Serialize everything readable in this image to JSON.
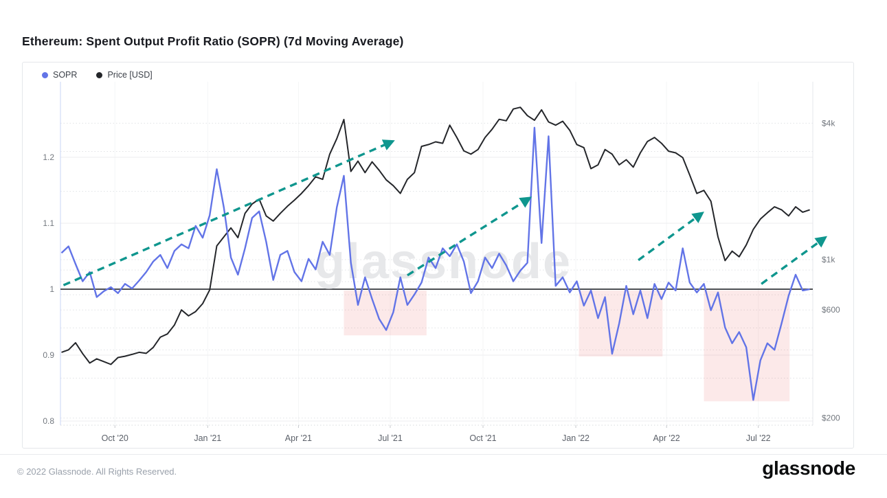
{
  "header": {
    "title": "Ethereum: Spent Output Profit Ratio (SOPR) (7d Moving Average)"
  },
  "legend": [
    {
      "label": "SOPR",
      "color": "#6274e7"
    },
    {
      "label": "Price [USD]",
      "color": "#24262a"
    }
  ],
  "watermark": "glassnode",
  "footer": {
    "copyright": "© 2022 Glassnode. All Rights Reserved.",
    "logo": "glassnode"
  },
  "chart_data": {
    "type": "line",
    "title": "Ethereum: Spent Output Profit Ratio (SOPR) (7d Moving Average)",
    "grid": true,
    "legend_position": "top-left",
    "x_domain": [
      "2020-08-08",
      "2022-08-24"
    ],
    "x_start": "2020-08-09",
    "x_step_days": 7,
    "x_ticks": [
      {
        "date": "2020-10-01",
        "label": "Oct '20"
      },
      {
        "date": "2021-01-01",
        "label": "Jan '21"
      },
      {
        "date": "2021-04-01",
        "label": "Apr '21"
      },
      {
        "date": "2021-07-01",
        "label": "Jul '21"
      },
      {
        "date": "2021-10-01",
        "label": "Oct '21"
      },
      {
        "date": "2022-01-01",
        "label": "Jan '22"
      },
      {
        "date": "2022-04-01",
        "label": "Apr '22"
      },
      {
        "date": "2022-07-01",
        "label": "Jul '22"
      }
    ],
    "left_axis": {
      "name": "SOPR",
      "scale": "linear",
      "ylim": [
        0.79,
        1.31
      ],
      "baseline": 1,
      "ticks": [
        {
          "value": 0.8,
          "label": "0.8"
        },
        {
          "value": 0.9,
          "label": "0.9"
        },
        {
          "value": 1,
          "label": "1"
        },
        {
          "value": 1.1,
          "label": "1.1"
        },
        {
          "value": 1.2,
          "label": "1.2"
        }
      ]
    },
    "right_axis": {
      "name": "Price [USD]",
      "scale": "log",
      "ylim": [
        190,
        6000
      ],
      "ticks": [
        {
          "value": 200,
          "label": "$200"
        },
        {
          "value": 600,
          "label": "$600"
        },
        {
          "value": 1000,
          "label": "$1k"
        },
        {
          "value": 4000,
          "label": "$4k"
        }
      ],
      "minor_gridlines": [
        300,
        400,
        500,
        700,
        800,
        900,
        2000,
        3000
      ]
    },
    "series": [
      {
        "name": "SOPR",
        "axis": "left",
        "color": "#6274e7",
        "values": [
          1.055,
          1.065,
          1.038,
          1.012,
          1.026,
          0.988,
          0.997,
          1.003,
          0.994,
          1.008,
          1.001,
          1.013,
          1.026,
          1.042,
          1.052,
          1.032,
          1.058,
          1.068,
          1.062,
          1.096,
          1.078,
          1.112,
          1.182,
          1.124,
          1.048,
          1.022,
          1.062,
          1.108,
          1.118,
          1.072,
          1.014,
          1.052,
          1.058,
          1.026,
          1.012,
          1.046,
          1.03,
          1.072,
          1.052,
          1.124,
          1.172,
          1.04,
          0.976,
          1.018,
          0.985,
          0.955,
          0.938,
          0.965,
          1.018,
          0.976,
          0.992,
          1.01,
          1.048,
          1.032,
          1.062,
          1.05,
          1.068,
          1.042,
          0.994,
          1.012,
          1.048,
          1.032,
          1.054,
          1.036,
          1.012,
          1.028,
          1.04,
          1.245,
          1.07,
          1.232,
          1.005,
          1.018,
          0.995,
          1.012,
          0.975,
          0.998,
          0.956,
          0.988,
          0.902,
          0.948,
          1.005,
          0.962,
          0.998,
          0.956,
          1.008,
          0.985,
          1.01,
          0.998,
          1.062,
          1.01,
          0.995,
          1.008,
          0.968,
          0.995,
          0.942,
          0.918,
          0.935,
          0.912,
          0.832,
          0.892,
          0.918,
          0.908,
          0.948,
          0.99,
          1.022,
          0.998,
          1.0
        ]
      },
      {
        "name": "Price [USD]",
        "axis": "right",
        "color": "#24262a",
        "values": [
          390,
          400,
          430,
          385,
          350,
          365,
          355,
          345,
          370,
          375,
          382,
          390,
          386,
          410,
          455,
          470,
          515,
          600,
          565,
          590,
          640,
          735,
          1150,
          1260,
          1380,
          1250,
          1600,
          1760,
          1850,
          1560,
          1480,
          1600,
          1720,
          1830,
          1960,
          2120,
          2320,
          2260,
          2920,
          3420,
          4150,
          2450,
          2720,
          2420,
          2700,
          2480,
          2250,
          2120,
          1960,
          2260,
          2420,
          3160,
          3220,
          3310,
          3260,
          3920,
          3460,
          3020,
          2920,
          3060,
          3460,
          3760,
          4160,
          4100,
          4620,
          4700,
          4320,
          4120,
          4580,
          4050,
          3920,
          4080,
          3720,
          3220,
          3120,
          2520,
          2620,
          3060,
          2920,
          2620,
          2760,
          2560,
          2960,
          3320,
          3460,
          3260,
          3010,
          2960,
          2820,
          2360,
          1960,
          2020,
          1810,
          1260,
          990,
          1090,
          1030,
          1160,
          1360,
          1510,
          1610,
          1710,
          1660,
          1560,
          1710,
          1620,
          1660
        ]
      }
    ],
    "annotations": {
      "arrow_color": "#0f968e",
      "box_color": "rgba(232,98,98,0.14)",
      "baseline_color": "#4d4f53",
      "arrows": [
        {
          "from": {
            "date": "2020-08-11",
            "sopr": 1.006
          },
          "to": {
            "date": "2021-07-03",
            "sopr": 1.224
          }
        },
        {
          "from": {
            "date": "2021-07-18",
            "sopr": 1.021
          },
          "to": {
            "date": "2021-11-16",
            "sopr": 1.138
          }
        },
        {
          "from": {
            "date": "2022-03-04",
            "sopr": 1.044
          },
          "to": {
            "date": "2022-05-06",
            "sopr": 1.115
          }
        },
        {
          "from": {
            "date": "2022-07-04",
            "sopr": 1.008
          },
          "to": {
            "date": "2022-09-05",
            "sopr": 1.078
          }
        }
      ],
      "highlight_boxes": [
        {
          "from_date": "2021-05-16",
          "to_date": "2021-08-06",
          "sopr_top": 0.998,
          "sopr_bottom": 0.93
        },
        {
          "from_date": "2022-01-04",
          "to_date": "2022-03-28",
          "sopr_top": 0.998,
          "sopr_bottom": 0.898
        },
        {
          "from_date": "2022-05-08",
          "to_date": "2022-08-01",
          "sopr_top": 0.998,
          "sopr_bottom": 0.83
        }
      ]
    }
  }
}
